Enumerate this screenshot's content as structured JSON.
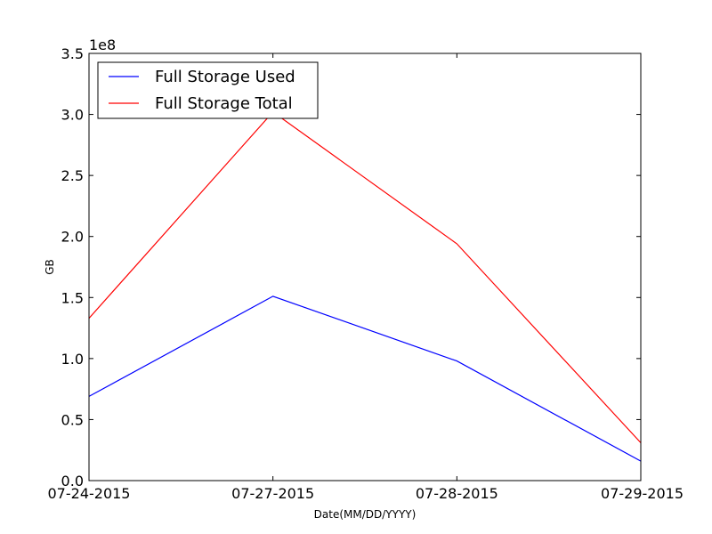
{
  "chart_data": {
    "type": "line",
    "x": [
      "07-24-2015",
      "07-27-2015",
      "07-28-2015",
      "07-29-2015"
    ],
    "series": [
      {
        "name": "Full Storage Used",
        "color": "#0000ff",
        "values": [
          69000000,
          151000000,
          98000000,
          16000000
        ]
      },
      {
        "name": "Full Storage Total",
        "color": "#ff0000",
        "values": [
          133000000,
          302000000,
          194000000,
          31000000
        ]
      }
    ],
    "xlabel": "Date(MM/DD/YYYY)",
    "ylabel": "GB",
    "ylim": [
      0,
      350000000
    ],
    "yticks": [
      "0.0",
      "0.5",
      "1.0",
      "1.5",
      "2.0",
      "2.5",
      "3.0",
      "3.5"
    ],
    "ytick_values": [
      0,
      50000000,
      100000000,
      150000000,
      200000000,
      250000000,
      300000000,
      350000000
    ],
    "offset_text": "1e8",
    "legend_position": "top-left",
    "grid": false
  }
}
